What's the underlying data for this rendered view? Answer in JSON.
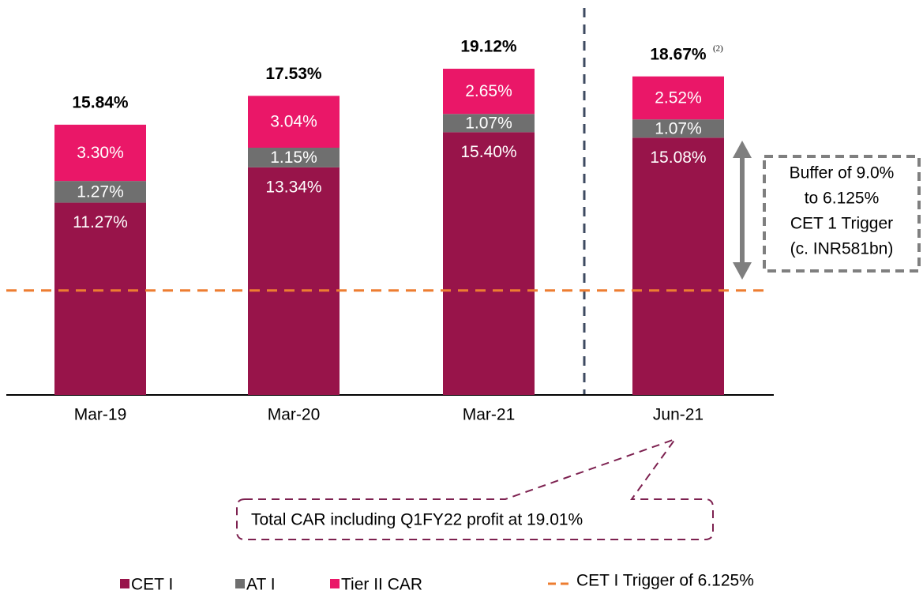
{
  "chart_data": {
    "type": "stacked_bar",
    "categories": [
      "Mar-19",
      "Mar-20",
      "Mar-21",
      "Jun-21"
    ],
    "series": [
      {
        "name": "CET I",
        "color": "#98144a",
        "values": [
          11.27,
          13.34,
          15.4,
          15.08
        ],
        "value_labels": [
          "11.27%",
          "13.34%",
          "15.40%",
          "15.08%"
        ]
      },
      {
        "name": "AT I",
        "color": "#6f6f6f",
        "values": [
          1.27,
          1.15,
          1.07,
          1.07
        ],
        "value_labels": [
          "1.27%",
          "1.15%",
          "1.07%",
          "1.07%"
        ]
      },
      {
        "name": "Tier II CAR",
        "color": "#ea1768",
        "values": [
          3.3,
          3.04,
          2.65,
          2.52
        ],
        "value_labels": [
          "3.30%",
          "3.04%",
          "2.65%",
          "2.52%"
        ]
      }
    ],
    "totals": [
      15.84,
      17.53,
      19.12,
      18.67
    ],
    "total_labels": [
      "15.84%",
      "17.53%",
      "19.12%",
      "18.67%"
    ],
    "total_footnote": "(2)",
    "trigger": {
      "value": 6.125,
      "label": "CET I Trigger of 6.125%",
      "color": "#ed7d31"
    },
    "buffer_annotation": [
      "Buffer of 9.0%",
      "to 6.125%",
      "CET 1 Trigger",
      "(c. INR581bn)"
    ],
    "callout": "Total CAR including Q1FY22 profit at 19.01%"
  }
}
